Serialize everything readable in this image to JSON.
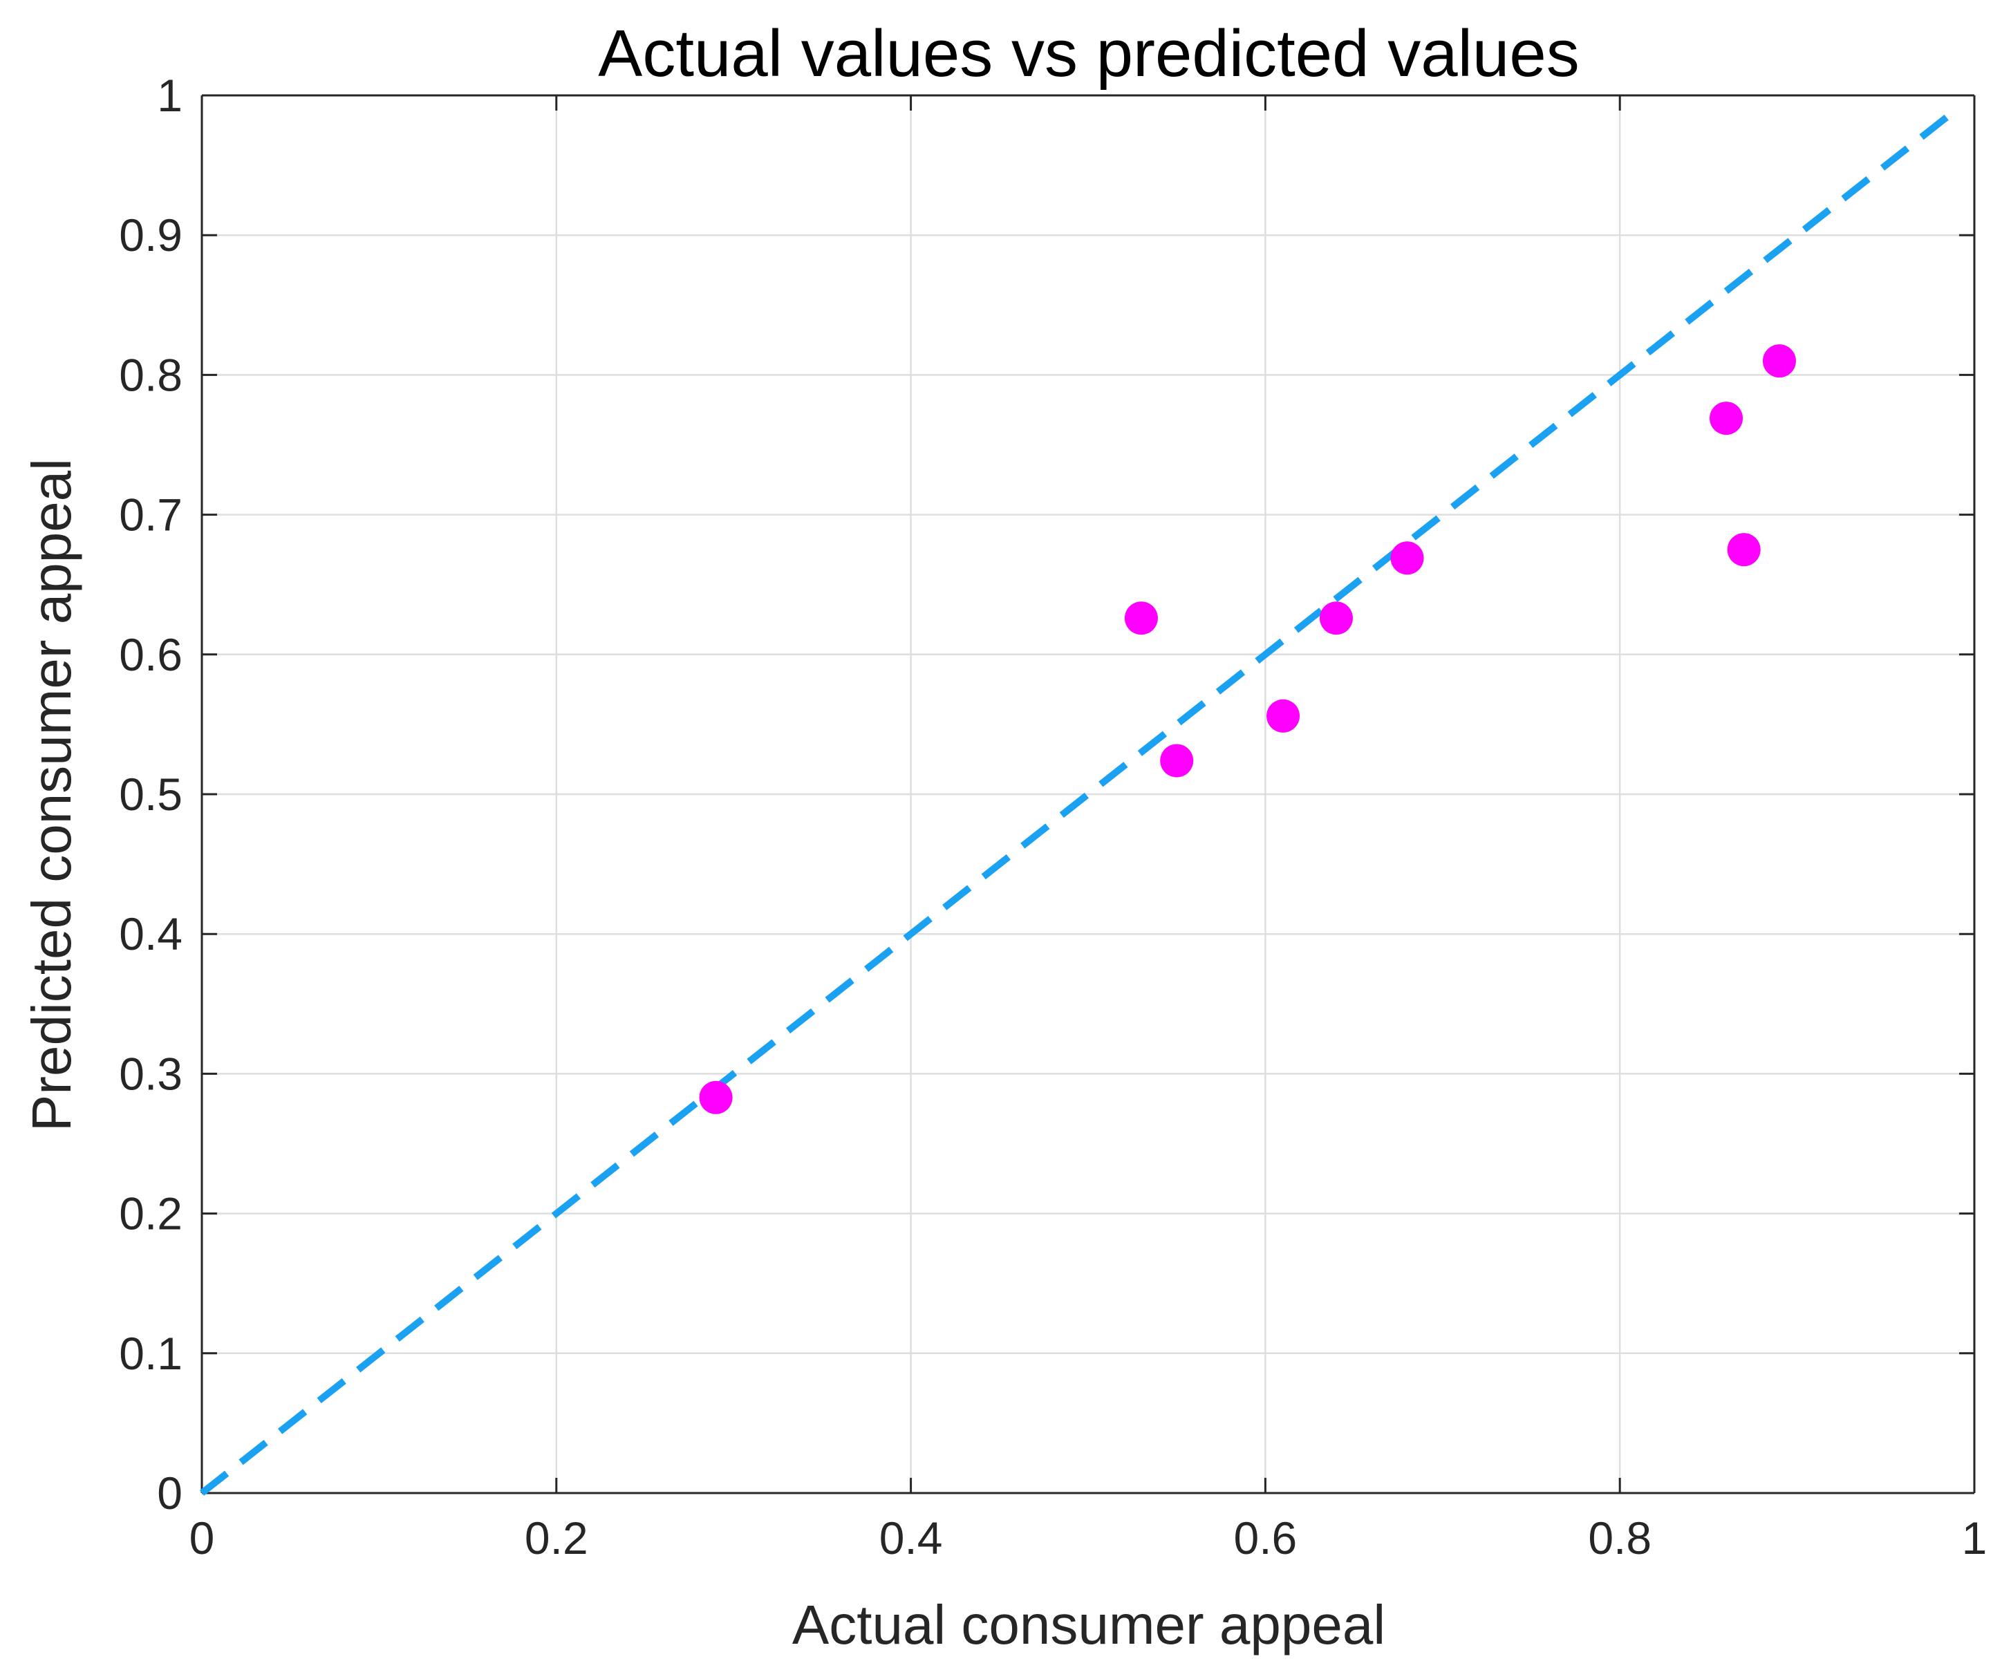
{
  "chart_data": {
    "type": "scatter",
    "title": "Actual values vs predicted values",
    "xlabel": "Actual consumer appeal",
    "ylabel": "Predicted consumer appeal",
    "xlim": [
      0,
      1
    ],
    "ylim": [
      0,
      1
    ],
    "xticks": [
      "0",
      "0.2",
      "0.4",
      "0.6",
      "0.8",
      "1"
    ],
    "yticks": [
      "0",
      "0.1",
      "0.2",
      "0.3",
      "0.4",
      "0.5",
      "0.6",
      "0.7",
      "0.8",
      "0.9",
      "1"
    ],
    "xtick_values": [
      0,
      0.2,
      0.4,
      0.6,
      0.8,
      1
    ],
    "ytick_values": [
      0,
      0.1,
      0.2,
      0.3,
      0.4,
      0.5,
      0.6,
      0.7,
      0.8,
      0.9,
      1
    ],
    "grid": true,
    "box": true,
    "series": [
      {
        "kind": "scatter",
        "color": "#ff00ff",
        "points": [
          {
            "x": 0.29,
            "y": 0.283
          },
          {
            "x": 0.53,
            "y": 0.626
          },
          {
            "x": 0.55,
            "y": 0.524
          },
          {
            "x": 0.61,
            "y": 0.556
          },
          {
            "x": 0.64,
            "y": 0.626
          },
          {
            "x": 0.68,
            "y": 0.669
          },
          {
            "x": 0.86,
            "y": 0.769
          },
          {
            "x": 0.87,
            "y": 0.675
          },
          {
            "x": 0.89,
            "y": 0.81
          }
        ]
      },
      {
        "kind": "line",
        "style": "dashed",
        "color": "#1ba1f2",
        "points": [
          {
            "x": 0,
            "y": 0
          },
          {
            "x": 0.99,
            "y": 0.99
          }
        ]
      }
    ]
  }
}
